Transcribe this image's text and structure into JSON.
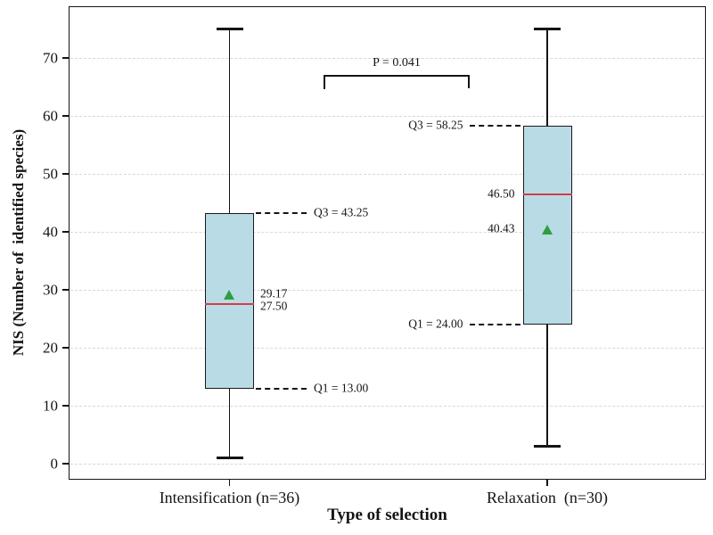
{
  "figure": {
    "ylabel": "NIS (Number of  identified species)",
    "xlabel": "Type of selection",
    "p_annotation": "P = 0.041"
  },
  "chart_data": {
    "type": "boxplot",
    "title": "",
    "xlabel": "Type of selection",
    "ylabel": "NIS (Number of  identified species)",
    "ylim": [
      -3,
      79
    ],
    "yticks": [
      0,
      10,
      20,
      30,
      40,
      50,
      60,
      70
    ],
    "grid": "horizontal-dashed",
    "legend": "none",
    "categories": [
      "Intensification (n=36)",
      "Relaxation  (n=30)"
    ],
    "series": [
      {
        "name": "Intensification",
        "n": 36,
        "whisker_low": 1,
        "q1": 13.0,
        "median": 27.5,
        "mean": 29.17,
        "q3": 43.25,
        "whisker_high": 75,
        "label_side": "right",
        "annotations": {
          "q3_label": "Q3 = 43.25",
          "q1_label": "Q1 = 13.00",
          "mean_label": "29.17",
          "median_label": "27.50"
        }
      },
      {
        "name": "Relaxation",
        "n": 30,
        "whisker_low": 3,
        "q1": 24.0,
        "median": 46.5,
        "mean": 40.43,
        "q3": 58.25,
        "whisker_high": 75,
        "label_side": "left",
        "annotations": {
          "q3_label": "Q3 = 58.25",
          "q1_label": "Q1 = 24.00",
          "mean_label": "40.43",
          "median_label": "46.50"
        }
      }
    ],
    "significance": {
      "text": "P = 0.041",
      "between": [
        "Intensification (n=36)",
        "Relaxation  (n=30)"
      ]
    },
    "colors": {
      "box_fill": "#b9dbe6",
      "box_edge": "#1a1a1a",
      "median_line": "#d43a47",
      "mean_marker": "#2f9e41",
      "gridline": "#d8d8d8",
      "annotation_line": "#141414"
    }
  }
}
